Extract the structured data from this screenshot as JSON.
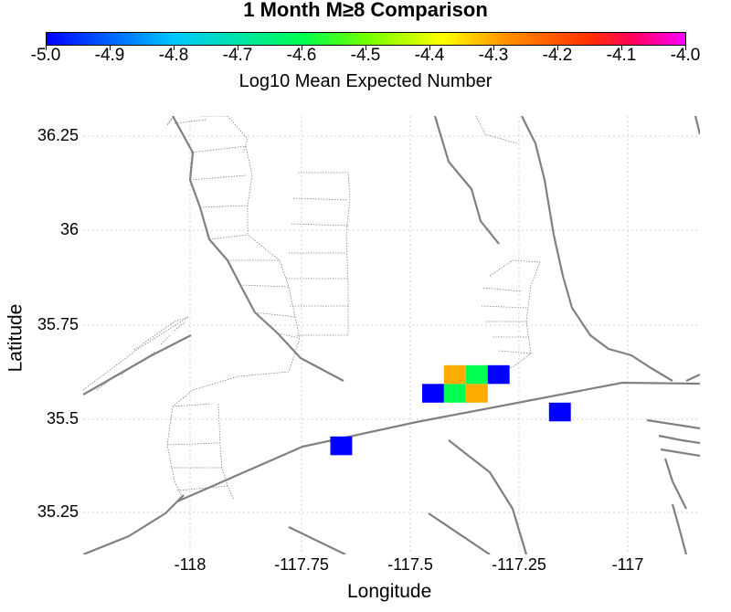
{
  "title": "1 Month M≥8 Comparison",
  "colorbar": {
    "label": "Log10 Mean Expected Number",
    "ticks": [
      "-5.0",
      "-4.9",
      "-4.8",
      "-4.7",
      "-4.6",
      "-4.5",
      "-4.4",
      "-4.3",
      "-4.2",
      "-4.1",
      "-4.0"
    ],
    "range": [
      -5.0,
      -4.0
    ]
  },
  "axes": {
    "xlabel": "Longitude",
    "ylabel": "Latitude",
    "xticks": [
      "-118",
      "-117.75",
      "-117.5",
      "-117.25",
      "-117"
    ],
    "yticks": [
      "36.25",
      "36",
      "35.75",
      "35.5",
      "35.25"
    ],
    "xlim": [
      -118.27,
      -116.86
    ],
    "ylim": [
      35.14,
      36.31
    ]
  },
  "colors": {
    "blue": "#0000ff",
    "green": "#00f050",
    "orange": "#ff6600",
    "fault": "#808080",
    "grid": "#d0d0d0"
  },
  "chart_data": {
    "type": "heatmap",
    "cells": [
      {
        "lon": -117.68,
        "lat": 35.43,
        "value": -5.0
      },
      {
        "lon": -117.47,
        "lat": 35.57,
        "value": -5.0
      },
      {
        "lon": -117.42,
        "lat": 35.57,
        "value": -4.65
      },
      {
        "lon": -117.37,
        "lat": 35.57,
        "value": -4.35
      },
      {
        "lon": -117.42,
        "lat": 35.62,
        "value": -4.35
      },
      {
        "lon": -117.37,
        "lat": 35.62,
        "value": -4.65
      },
      {
        "lon": -117.32,
        "lat": 35.62,
        "value": -5.0
      },
      {
        "lon": -117.18,
        "lat": 35.52,
        "value": -5.0
      }
    ]
  }
}
